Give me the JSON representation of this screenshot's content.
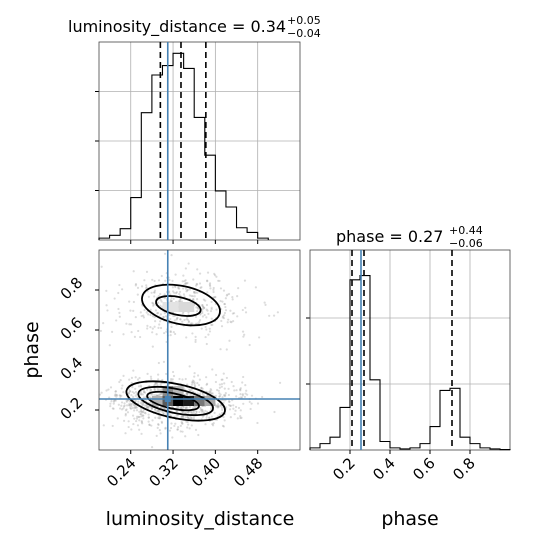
{
  "chart_data": {
    "type": "corner",
    "parameters": [
      "luminosity_distance",
      "phase"
    ],
    "truth": {
      "luminosity_distance": 0.31,
      "phase": 0.255
    },
    "panels": {
      "luminosity_distance_hist": {
        "type": "histogram",
        "title": "luminosity_distance = 0.34",
        "title_sup": "+0.05",
        "title_sub": "−0.04",
        "xlim": [
          0.18,
          0.56
        ],
        "bin_edges": [
          0.18,
          0.2,
          0.22,
          0.24,
          0.26,
          0.28,
          0.3,
          0.32,
          0.34,
          0.36,
          0.38,
          0.4,
          0.42,
          0.44,
          0.46,
          0.48,
          0.5
        ],
        "counts": [
          0.2,
          0.5,
          1.2,
          4.5,
          13.5,
          17.5,
          18.5,
          19.8,
          18.2,
          13.0,
          9.0,
          5.2,
          3.5,
          1.3,
          0.8,
          0.2
        ],
        "ylim": [
          0,
          21
        ],
        "quantiles": [
          0.296,
          0.335,
          0.382
        ]
      },
      "phase_hist": {
        "type": "histogram",
        "title": "phase = 0.27",
        "title_sup": "+0.44",
        "title_sub": "−0.06",
        "xlim": [
          0.0,
          1.0
        ],
        "bin_edges": [
          0.0,
          0.05,
          0.1,
          0.15,
          0.2,
          0.25,
          0.3,
          0.35,
          0.4,
          0.45,
          0.5,
          0.55,
          0.6,
          0.65,
          0.7,
          0.75,
          0.8,
          0.85,
          0.9,
          0.95,
          1.0
        ],
        "counts": [
          0.1,
          0.3,
          0.6,
          2.0,
          8.0,
          8.2,
          3.3,
          0.4,
          0.1,
          0.05,
          0.1,
          0.3,
          1.1,
          2.8,
          2.9,
          0.6,
          0.3,
          0.1,
          0.05,
          0.02
        ],
        "ylim": [
          0,
          9.4
        ],
        "quantiles": [
          0.21,
          0.27,
          0.71
        ]
      },
      "joint": {
        "type": "2d-density",
        "xlim": [
          0.18,
          0.56
        ],
        "ylim": [
          0.0,
          1.0
        ],
        "modes": [
          {
            "cx": 0.33,
            "cy": 0.72,
            "sx": 0.055,
            "sy": 0.085,
            "weight": 0.3
          },
          {
            "cx": 0.325,
            "cy": 0.24,
            "sx": 0.055,
            "sy": 0.06,
            "weight": 0.7
          }
        ],
        "contour_levels": [
          0.39,
          0.86
        ]
      }
    },
    "x_ticks_left": [
      "0.24",
      "0.32",
      "0.40",
      "0.48"
    ],
    "x_tick_values_left": [
      0.24,
      0.32,
      0.4,
      0.48
    ],
    "y_ticks_joint": [
      "0.2",
      "0.4",
      "0.6",
      "0.8"
    ],
    "y_tick_values_joint": [
      0.2,
      0.4,
      0.6,
      0.8
    ],
    "x_ticks_right": [
      "0.2",
      "0.4",
      "0.6",
      "0.8"
    ],
    "x_tick_values_right": [
      0.2,
      0.4,
      0.6,
      0.8
    ],
    "xlabel_left": "luminosity_distance",
    "ylabel_joint": "phase",
    "xlabel_right": "phase",
    "colors": {
      "truth": "#4682b4",
      "hist": "#000000",
      "grid": "#b0b0b0",
      "density": "#000000"
    }
  }
}
